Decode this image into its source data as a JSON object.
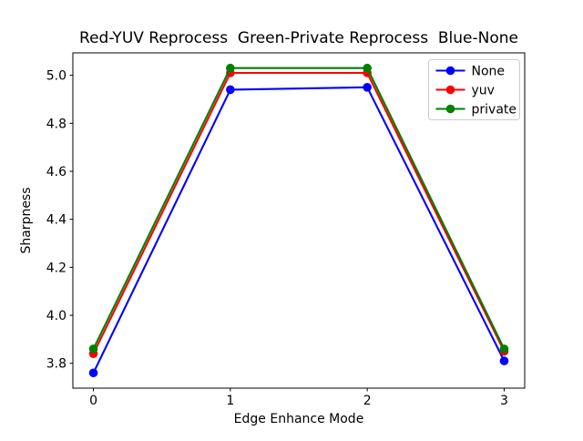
{
  "chart_data": {
    "type": "line",
    "title": "Red-YUV Reprocess  Green-Private Reprocess  Blue-None",
    "xlabel": "Edge Enhance Mode",
    "ylabel": "Sharpness",
    "x": [
      0,
      1,
      2,
      3
    ],
    "series": [
      {
        "name": "None",
        "color": "#0000ff",
        "values": [
          3.76,
          4.94,
          4.95,
          3.81
        ]
      },
      {
        "name": "yuv",
        "color": "#ff0000",
        "values": [
          3.84,
          5.01,
          5.01,
          3.85
        ]
      },
      {
        "name": "private",
        "color": "#008000",
        "values": [
          3.86,
          5.03,
          5.03,
          3.86
        ]
      }
    ],
    "marker": "circle",
    "xticks": [
      0,
      1,
      2,
      3
    ],
    "yticks": [
      3.8,
      4.0,
      4.2,
      4.4,
      4.6,
      4.8,
      5.0
    ],
    "xlim": [
      -0.15,
      3.15
    ],
    "ylim": [
      3.6965,
      5.0935
    ],
    "grid": false,
    "background": "#ffffff",
    "spine_color": "#000000",
    "legend": {
      "position": "upper right",
      "entries": [
        "None",
        "yuv",
        "private"
      ],
      "border_color": "#cccccc",
      "background": "#ffffff"
    }
  }
}
